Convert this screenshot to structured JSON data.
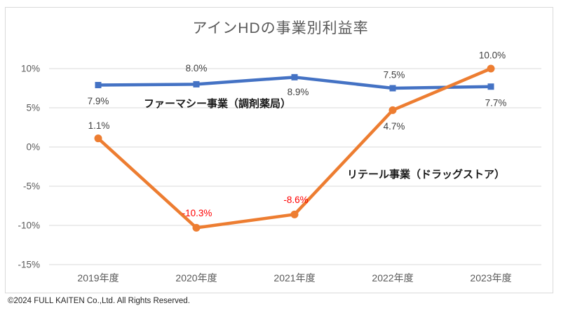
{
  "page": {
    "title": "アインHDの事業別利益率",
    "footer": "©2024 FULL KAITEN Co.,Ltd. All Rights Reserved."
  },
  "chart_data": {
    "type": "line",
    "title": "アインHDの事業別利益率",
    "categories": [
      "2019年度",
      "2020年度",
      "2021年度",
      "2022年度",
      "2023年度"
    ],
    "series": [
      {
        "name": "ファーマシー事業（調剤薬局）",
        "values": [
          7.9,
          8.0,
          8.9,
          7.5,
          7.7
        ],
        "labels": [
          "7.9%",
          "8.0%",
          "8.9%",
          "7.5%",
          "7.7%"
        ],
        "color": "#4472C4",
        "marker": "square"
      },
      {
        "name": "リテール事業（ドラッグストア）",
        "values": [
          1.1,
          -10.3,
          -8.6,
          4.7,
          10.0
        ],
        "labels": [
          "1.1%",
          "-10.3%",
          "-8.6%",
          "4.7%",
          "10.0%"
        ],
        "color": "#ED7D31",
        "marker": "circle"
      }
    ],
    "y_ticks": [
      {
        "value": 10,
        "label": "10%"
      },
      {
        "value": 5,
        "label": "5%"
      },
      {
        "value": 0,
        "label": "0%"
      },
      {
        "value": -5,
        "label": "-5%"
      },
      {
        "value": -10,
        "label": "-10%"
      },
      {
        "value": -15,
        "label": "-15%"
      }
    ],
    "ylim": [
      -15,
      10
    ],
    "xlabel": "",
    "ylabel": "",
    "grid": true,
    "legend_position": "inline-annotations",
    "colors": {
      "grid": "#d9d9d9",
      "axis_text": "#595959",
      "data_label": "#404040",
      "negative_label": "#FF0000",
      "title": "#595959"
    }
  }
}
